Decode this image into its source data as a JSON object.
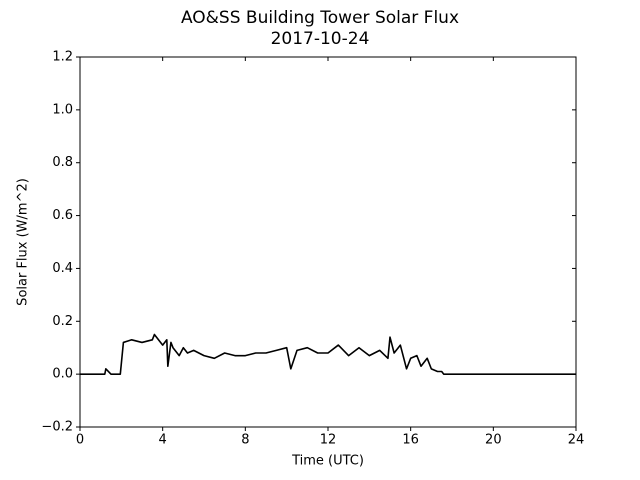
{
  "chart_data": {
    "type": "line",
    "title": "AO&SS Building Tower Solar Flux",
    "subtitle": "2017-10-24",
    "x_label": "Time (UTC)",
    "y_label": "Solar Flux (W/m^2)",
    "x": [
      0,
      0.5,
      1,
      1.2,
      1.25,
      1.5,
      1.9,
      1.95,
      2.1,
      2.5,
      3,
      3.5,
      3.6,
      4,
      4.2,
      4.25,
      4.4,
      4.5,
      4.8,
      5,
      5.2,
      5.5,
      6,
      6.5,
      7,
      7.5,
      8,
      8.5,
      9,
      9.5,
      10,
      10.2,
      10.5,
      11,
      11.5,
      12,
      12.5,
      13,
      13.5,
      14,
      14.5,
      14.9,
      15,
      15.2,
      15.5,
      15.8,
      16,
      16.3,
      16.5,
      16.8,
      17,
      17.3,
      17.5,
      17.6,
      18,
      20,
      22,
      24
    ],
    "series": [
      {
        "color": "#000000",
        "values": [
          0,
          0,
          0,
          0,
          0.02,
          0,
          0,
          0,
          0.12,
          0.13,
          0.12,
          0.13,
          0.15,
          0.11,
          0.13,
          0.03,
          0.12,
          0.1,
          0.07,
          0.1,
          0.08,
          0.09,
          0.07,
          0.06,
          0.08,
          0.07,
          0.07,
          0.08,
          0.08,
          0.09,
          0.1,
          0.02,
          0.09,
          0.1,
          0.08,
          0.08,
          0.11,
          0.07,
          0.1,
          0.07,
          0.09,
          0.06,
          0.14,
          0.08,
          0.11,
          0.02,
          0.06,
          0.07,
          0.03,
          0.06,
          0.02,
          0.01,
          0.01,
          0,
          0,
          0,
          0,
          0
        ]
      }
    ],
    "xlim": [
      0,
      24
    ],
    "xticks": [
      0,
      4,
      8,
      12,
      16,
      20,
      24
    ],
    "ylim": [
      -0.2,
      1.2
    ],
    "yticks": [
      {
        "value": -0.2,
        "label": "−0.2"
      },
      {
        "value": 0,
        "label": "0.0"
      },
      0.2,
      0.4,
      0.6,
      0.8,
      {
        "value": 1,
        "label": "1.0"
      },
      1.2
    ]
  }
}
